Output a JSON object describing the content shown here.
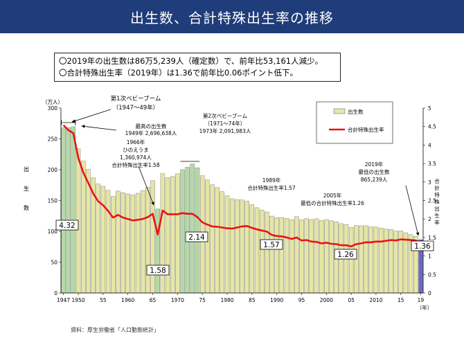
{
  "page": {
    "title": "出生数、合計特殊出生率の推移",
    "summary": [
      "〇2019年の出生数は86万5,239人（確定数）で、前年比53,161人減少。",
      "〇合計特殊出生率（2019年）は1.36で前年比0.06ポイント低下。"
    ],
    "source": "資料：厚生労働省「人口動態統計」"
  },
  "chart_data": {
    "type": "bar",
    "title": "",
    "left_axis": {
      "unit": "（万人）",
      "label_chars": [
        "出",
        "生",
        "数"
      ],
      "ylim": [
        0,
        300
      ],
      "ticks": [
        0,
        50,
        100,
        150,
        200,
        250,
        300
      ]
    },
    "right_axis": {
      "label_chars": [
        "合",
        "計",
        "特",
        "殊",
        "出",
        "生",
        "率"
      ],
      "ylim": [
        0,
        5
      ],
      "ticks": [
        0,
        0.5,
        1,
        1.5,
        2,
        2.5,
        3,
        3.5,
        4,
        4.5,
        5
      ],
      "tick_labels": [
        "0",
        "0.5",
        "1",
        "1.5",
        "2",
        "2.5",
        "3",
        "3.5",
        "4",
        "4.5",
        "5"
      ]
    },
    "x_axis": {
      "unit": "（年）",
      "ticks": [
        {
          "year": 1947,
          "label": "1947"
        },
        {
          "year": 1950,
          "label": "1950"
        },
        {
          "year": 1955,
          "label": "55"
        },
        {
          "year": 1960,
          "label": "1960"
        },
        {
          "year": 1965,
          "label": "65"
        },
        {
          "year": 1970,
          "label": "1970"
        },
        {
          "year": 1975,
          "label": "75"
        },
        {
          "year": 1980,
          "label": "1980"
        },
        {
          "year": 1985,
          "label": "85"
        },
        {
          "year": 1990,
          "label": "1990"
        },
        {
          "year": 1995,
          "label": "95"
        },
        {
          "year": 2000,
          "label": "2000"
        },
        {
          "year": 2005,
          "label": "05"
        },
        {
          "year": 2010,
          "label": "2010"
        },
        {
          "year": 2015,
          "label": "15"
        },
        {
          "year": 2019,
          "label": "19"
        }
      ]
    },
    "years": [
      1947,
      1948,
      1949,
      1950,
      1951,
      1952,
      1953,
      1954,
      1955,
      1956,
      1957,
      1958,
      1959,
      1960,
      1961,
      1962,
      1963,
      1964,
      1965,
      1966,
      1967,
      1968,
      1969,
      1970,
      1971,
      1972,
      1973,
      1974,
      1975,
      1976,
      1977,
      1978,
      1979,
      1980,
      1981,
      1982,
      1983,
      1984,
      1985,
      1986,
      1987,
      1988,
      1989,
      1990,
      1991,
      1992,
      1993,
      1994,
      1995,
      1996,
      1997,
      1998,
      1999,
      2000,
      2001,
      2002,
      2003,
      2004,
      2005,
      2006,
      2007,
      2008,
      2009,
      2010,
      2011,
      2012,
      2013,
      2014,
      2015,
      2016,
      2017,
      2018,
      2019
    ],
    "series": [
      {
        "name": "出生数",
        "kind": "bar",
        "color": "#e6e6a6",
        "highlight_color": "#b5d9a8",
        "last_color": "#6b68c9",
        "highlight_years": [
          1947,
          1948,
          1949,
          1966,
          1971,
          1972,
          1973,
          1974
        ],
        "values": [
          267.9,
          268.2,
          269.7,
          233.8,
          213.8,
          200.5,
          186.8,
          176.9,
          173.1,
          166.5,
          156.7,
          165.3,
          162.6,
          160.6,
          158.9,
          161.8,
          166.0,
          171.7,
          182.4,
          136.1,
          193.6,
          187.2,
          188.9,
          193.4,
          200.1,
          203.9,
          209.2,
          203.0,
          190.1,
          183.3,
          175.5,
          170.9,
          164.3,
          157.7,
          152.9,
          151.5,
          150.9,
          149.0,
          143.2,
          138.3,
          134.7,
          131.4,
          124.7,
          122.2,
          122.3,
          120.9,
          118.8,
          123.8,
          118.7,
          120.7,
          119.2,
          120.3,
          117.8,
          119.1,
          117.1,
          115.4,
          112.4,
          111.1,
          106.3,
          109.3,
          109.0,
          109.1,
          107.0,
          107.1,
          105.1,
          103.7,
          103.0,
          100.4,
          100.6,
          97.7,
          94.6,
          91.8,
          86.5
        ]
      },
      {
        "name": "合計特殊出生率",
        "kind": "line",
        "color": "#ee1111",
        "values": [
          4.54,
          4.4,
          4.32,
          3.65,
          3.26,
          2.98,
          2.69,
          2.48,
          2.37,
          2.22,
          2.04,
          2.11,
          2.04,
          2.0,
          1.96,
          1.98,
          2.0,
          2.05,
          2.14,
          1.58,
          2.23,
          2.13,
          2.13,
          2.13,
          2.16,
          2.14,
          2.14,
          2.05,
          1.91,
          1.85,
          1.8,
          1.79,
          1.77,
          1.75,
          1.74,
          1.77,
          1.8,
          1.81,
          1.76,
          1.72,
          1.69,
          1.66,
          1.57,
          1.54,
          1.53,
          1.5,
          1.46,
          1.5,
          1.42,
          1.43,
          1.39,
          1.38,
          1.34,
          1.36,
          1.33,
          1.32,
          1.29,
          1.29,
          1.26,
          1.32,
          1.34,
          1.37,
          1.37,
          1.39,
          1.39,
          1.41,
          1.43,
          1.42,
          1.45,
          1.44,
          1.43,
          1.42,
          1.36
        ]
      }
    ],
    "legend": {
      "position": "top-right",
      "entries": [
        "出生数",
        "合計特殊出生率"
      ]
    },
    "value_boxes": [
      {
        "year": 1949,
        "text": "4.32"
      },
      {
        "year": 1966,
        "text": "1.58"
      },
      {
        "year": 1973,
        "text": "2.14"
      },
      {
        "year": 1989,
        "text": "1.57"
      },
      {
        "year": 2005,
        "text": "1.26"
      },
      {
        "year": 2019,
        "text": "1.36"
      }
    ],
    "annotations": {
      "boom1": {
        "lines": [
          "第1次ベビーブーム",
          "（1947〜49年）"
        ]
      },
      "peak": {
        "lines": [
          "最高の出生数",
          "1949年 2,696,638人"
        ]
      },
      "hinoe": {
        "lines": [
          "1966年",
          "ひのえうま",
          "1,360,974人",
          "合計特殊出生率1.58"
        ]
      },
      "boom2": {
        "lines": [
          "第2次ベビーブーム",
          "（1971〜74年）",
          "1973年 2,091,983人"
        ]
      },
      "r1989": {
        "lines": [
          "1989年",
          "合計特殊出生率1.57"
        ]
      },
      "r2005": {
        "lines": [
          "2005年",
          "最低の合計特殊出生率1.26"
        ]
      },
      "b2019": {
        "lines": [
          "2019年",
          "最低の出生数",
          "865,239人"
        ]
      }
    }
  }
}
